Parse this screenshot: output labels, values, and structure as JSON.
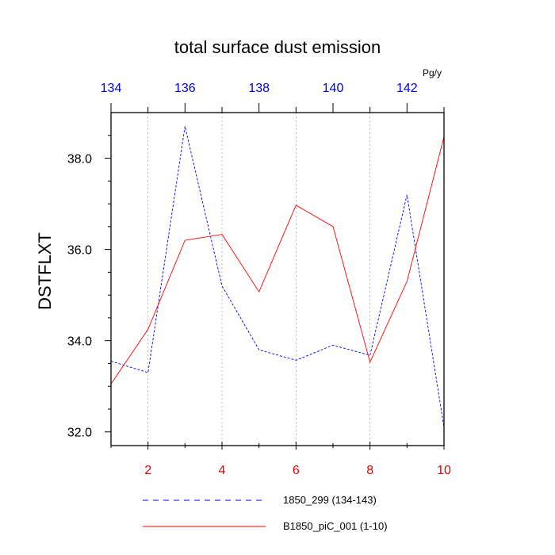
{
  "chart_data": {
    "type": "line",
    "title": "total surface dust emission",
    "ylabel": "DSTFLXT",
    "units": "Pg/y",
    "ylim": [
      31.7,
      39.0
    ],
    "yticks": [
      32.0,
      34.0,
      36.0,
      38.0
    ],
    "ytick_labels": [
      "32.0",
      "34.0",
      "36.0",
      "38.0"
    ],
    "bottom_axis": {
      "range": [
        1,
        10
      ],
      "ticks": [
        2,
        4,
        6,
        8,
        10
      ],
      "tick_labels": [
        "2",
        "4",
        "6",
        "8",
        "10"
      ],
      "color": "#e00000"
    },
    "top_axis": {
      "range": [
        134,
        143
      ],
      "ticks": [
        134,
        136,
        138,
        140,
        142
      ],
      "tick_labels": [
        "134",
        "136",
        "138",
        "140",
        "142"
      ],
      "color": "#0000e0"
    },
    "grid": "vertical dotted at major bottom ticks",
    "series": [
      {
        "name": "1850_299 (134-143)",
        "color": "#0000ff",
        "dash": "dashed",
        "axis": "top",
        "x": [
          134,
          135,
          136,
          137,
          138,
          139,
          140,
          141,
          142,
          143
        ],
        "y": [
          33.55,
          33.3,
          38.7,
          35.2,
          33.8,
          33.57,
          33.9,
          33.68,
          37.2,
          32.1
        ]
      },
      {
        "name": "B1850_piC_001 (1-10)",
        "color": "#ff0000",
        "dash": "solid",
        "axis": "bottom",
        "x": [
          1,
          2,
          3,
          4,
          5,
          6,
          7,
          8,
          9,
          10
        ],
        "y": [
          33.05,
          34.25,
          36.2,
          36.33,
          35.07,
          36.97,
          36.5,
          33.53,
          35.3,
          38.47
        ]
      }
    ],
    "legend_position": "bottom"
  }
}
